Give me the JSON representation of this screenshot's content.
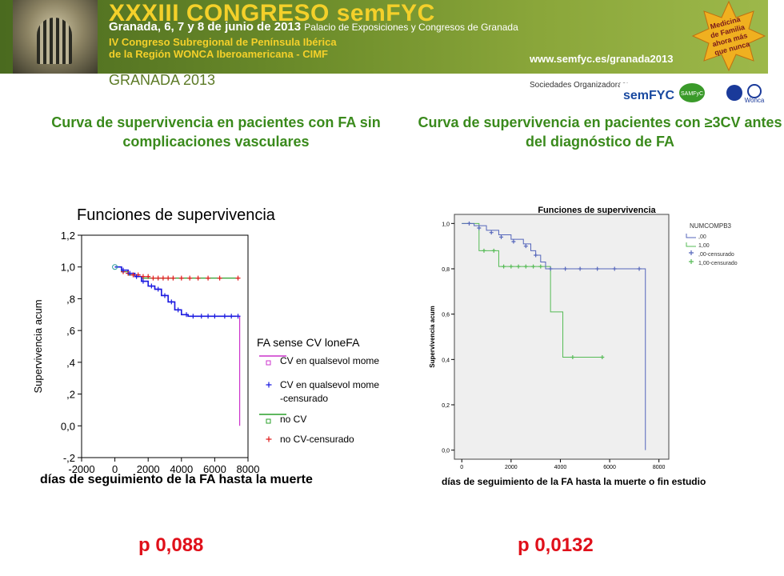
{
  "header": {
    "congress_title": "XXXIII CONGRESO semFYC",
    "dates": "Granada, 6, 7 y 8 de junio de 2013",
    "venue": "Palacio de Exposiciones y Congresos de Granada",
    "subtitle_line1": "IV Congreso Subregional de Península Ibérica",
    "subtitle_line2": "de la Región WONCA Iberoamericana - CIMF",
    "place": "GRANADA 2013",
    "url": "www.semfyc.es/granada2013",
    "star_text": [
      "Medicina",
      "de Familia",
      "ahora más",
      "que nunca"
    ],
    "sponsors_label": "Sociedades Organizadoras:",
    "logos": [
      "semFYC",
      "SAMFyC",
      "Wonca"
    ]
  },
  "titles": {
    "left": "Curva de supervivencia en pacientes con FA sin complicaciones vasculares",
    "right": "Curva de supervivencia en pacientes con ≥3CV antes del diagnóstico de FA"
  },
  "pvalues": {
    "left": "p 0,088",
    "right": "p 0,0132"
  },
  "colors": {
    "banner_green": "#6c8c2a",
    "title_green": "#3a8a1c",
    "pvalue_red": "#e0101a",
    "blue": "#1a1ae0",
    "red": "#e01a1a",
    "magenta": "#cc33cc",
    "green": "#2aa02a",
    "spss_blue": "#5566bb",
    "spss_green": "#55bb55"
  },
  "chart_data": [
    {
      "type": "line",
      "title": "Funciones de supervivencia",
      "xlabel": "días de seguimiento de la FA hasta la muerte",
      "ylabel": "Supervivencia acum",
      "xlim": [
        -2000,
        8000
      ],
      "ylim": [
        -0.2,
        1.2
      ],
      "xticks": [
        "-2000",
        "0",
        "2000",
        "4000",
        "6000",
        "8000"
      ],
      "yticks": [
        "-,2",
        "0,0",
        ",2",
        ",4",
        ",6",
        ",8",
        "1,0",
        "1,2"
      ],
      "legend_title": "FA sense CV loneFA",
      "legend": [
        "CV en qualsevol mome",
        "CV en qualsevol mome",
        "-censurado",
        "no CV",
        "no CV-censurado"
      ],
      "series": [
        {
          "name": "CV en qualsevol mome",
          "x": [
            0,
            400,
            800,
            1200,
            1600,
            2000,
            2400,
            2800,
            3200,
            3600,
            4000,
            4400,
            7300,
            7500
          ],
          "y": [
            1.0,
            0.98,
            0.96,
            0.94,
            0.91,
            0.88,
            0.86,
            0.82,
            0.78,
            0.73,
            0.7,
            0.69,
            0.69,
            0.0
          ],
          "censored_x": [
            500,
            900,
            1300,
            1700,
            2200,
            2600,
            3000,
            3400,
            3800,
            4300,
            4700,
            5200,
            5600,
            6000,
            6600,
            7000,
            7400
          ],
          "censored_y": [
            0.98,
            0.96,
            0.94,
            0.91,
            0.88,
            0.86,
            0.82,
            0.78,
            0.73,
            0.7,
            0.69,
            0.69,
            0.69,
            0.69,
            0.69,
            0.69,
            0.69
          ]
        },
        {
          "name": "no CV",
          "x": [
            0,
            400,
            800,
            1200,
            1600,
            7400
          ],
          "y": [
            1.0,
            0.97,
            0.95,
            0.94,
            0.93,
            0.93
          ],
          "censored_x": [
            500,
            800,
            1100,
            1400,
            1700,
            2000,
            2300,
            2600,
            2900,
            3200,
            3500,
            4000,
            4500,
            5000,
            5600,
            6300,
            7400
          ],
          "censored_y": [
            0.97,
            0.96,
            0.95,
            0.95,
            0.94,
            0.94,
            0.93,
            0.93,
            0.93,
            0.93,
            0.93,
            0.93,
            0.93,
            0.93,
            0.93,
            0.93,
            0.93
          ]
        }
      ]
    },
    {
      "type": "line",
      "title": "Funciones de supervivencia",
      "xlabel": "días de seguimiento de la FA hasta la muerte o fin estudio",
      "ylabel": "Supervivencia acum",
      "xlim": [
        -300,
        8400
      ],
      "ylim": [
        -0.04,
        1.04
      ],
      "xticks": [
        "0",
        "2000",
        "4000",
        "6000",
        "8000"
      ],
      "yticks": [
        "0,0",
        "0,2",
        "0,4",
        "0,6",
        "0,8",
        "1,0"
      ],
      "legend_title": "NUMCOMPB3",
      "legend": [
        ",00",
        "1,00",
        ",00-censurado",
        "1,00-censurado"
      ],
      "series": [
        {
          "name": ",00",
          "x": [
            0,
            500,
            1000,
            1500,
            2000,
            2500,
            2800,
            3000,
            3200,
            3400,
            7400,
            7450
          ],
          "y": [
            1.0,
            0.99,
            0.97,
            0.95,
            0.93,
            0.91,
            0.88,
            0.86,
            0.83,
            0.8,
            0.8,
            0.0
          ],
          "censored_x": [
            300,
            700,
            1200,
            1600,
            2100,
            2600,
            3000,
            3600,
            4200,
            4800,
            5500,
            6200,
            7200
          ],
          "censored_y": [
            1.0,
            0.98,
            0.96,
            0.94,
            0.92,
            0.9,
            0.86,
            0.8,
            0.8,
            0.8,
            0.8,
            0.8,
            0.8
          ]
        },
        {
          "name": "1,00",
          "x": [
            0,
            700,
            1500,
            3600,
            4100,
            5700
          ],
          "y": [
            1.0,
            0.88,
            0.81,
            0.61,
            0.41,
            0.41
          ],
          "censored_x": [
            900,
            1300,
            1700,
            2000,
            2300,
            2600,
            2900,
            3200,
            4500,
            5700
          ],
          "censored_y": [
            0.88,
            0.88,
            0.81,
            0.81,
            0.81,
            0.81,
            0.81,
            0.81,
            0.41,
            0.41
          ]
        }
      ]
    }
  ]
}
